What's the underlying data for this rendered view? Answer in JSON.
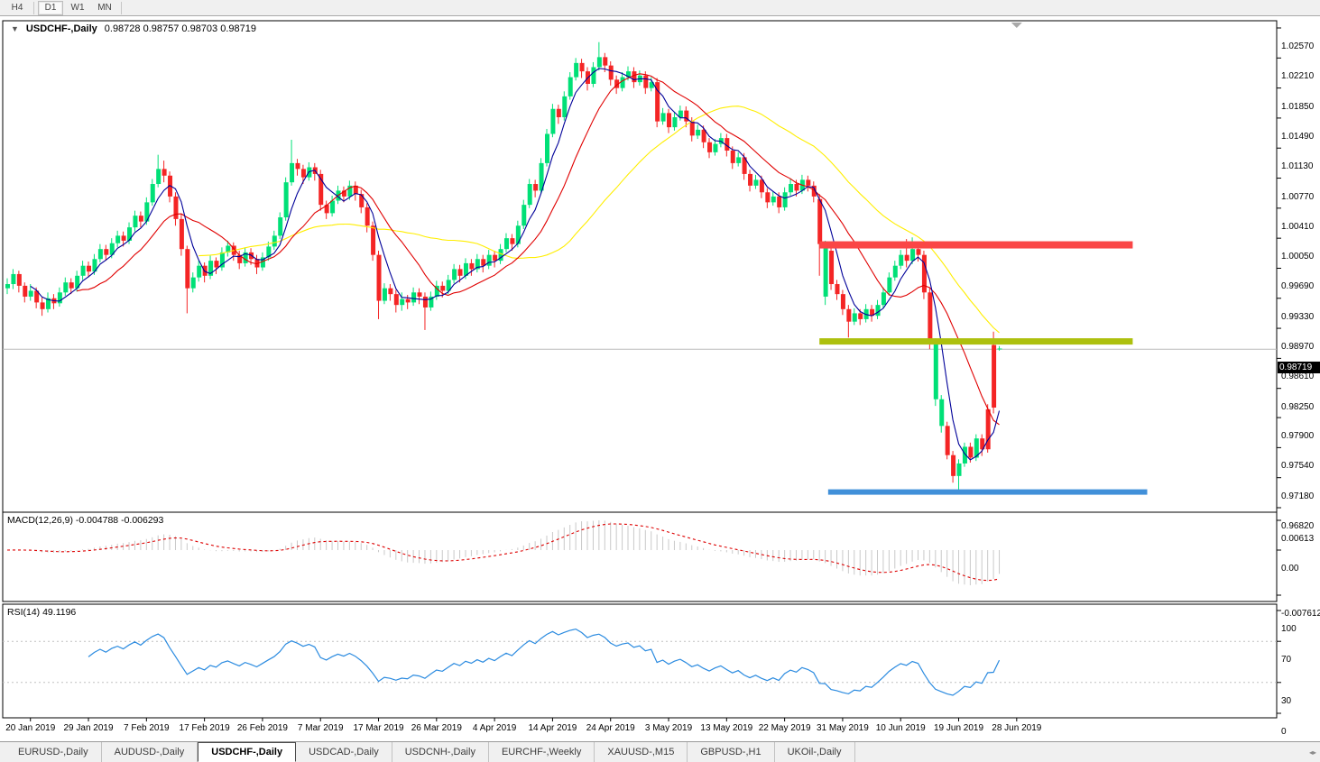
{
  "toolbar": {
    "timeframes": [
      {
        "label": "H4",
        "active": false
      },
      {
        "label": "D1",
        "active": true
      },
      {
        "label": "W1",
        "active": false
      },
      {
        "label": "MN",
        "active": false
      }
    ]
  },
  "chart": {
    "dropdown_icon": "▼",
    "title": "USDCHF-,Daily",
    "ohlc_text": "0.98728 0.98757 0.98703 0.98719",
    "open": "0.98728",
    "high": "0.98757",
    "low": "0.98703",
    "close": "0.98719"
  },
  "price_axis": {
    "current": "0.98719",
    "ticks": [
      "1.02570",
      "1.02210",
      "1.01850",
      "1.01490",
      "1.01130",
      "1.00770",
      "1.00410",
      "1.00050",
      "0.99690",
      "0.99330",
      "0.98970",
      "0.98610",
      "0.98250",
      "0.97900",
      "0.97540",
      "0.97180",
      "0.96820"
    ]
  },
  "chart_data": {
    "type": "candlestick",
    "symbol": "USDCHF",
    "timeframe": "Daily",
    "y_axis": {
      "top_price": 1.0257,
      "bottom_price": 0.9682,
      "grid": false
    },
    "x_ticks": {
      "labels": [
        "20 Jan 2019",
        "29 Jan 2019",
        "7 Feb 2019",
        "17 Feb 2019",
        "26 Feb 2019",
        "7 Mar 2019",
        "17 Mar 2019",
        "26 Mar 2019",
        "4 Apr 2019",
        "14 Apr 2019",
        "24 Apr 2019",
        "3 May 2019",
        "13 May 2019",
        "22 May 2019",
        "31 May 2019",
        "10 Jun 2019",
        "19 Jun 2019",
        "28 Jun 2019"
      ],
      "bars": [
        4,
        14,
        24,
        34,
        44,
        54,
        64,
        74,
        84,
        94,
        104,
        114,
        124,
        134,
        144,
        154,
        164,
        174
      ]
    },
    "current_price": 0.98719,
    "moving_averages": [
      {
        "name": "ma-slow",
        "period": 34,
        "color": "#ffee00"
      },
      {
        "name": "ma-mid",
        "period": 13,
        "color": "#e00000"
      },
      {
        "name": "ma-fast",
        "period": 5,
        "color": "#000099"
      }
    ],
    "levels": [
      {
        "name": "resistance-red",
        "price": 0.9997,
        "color": "#fa4646",
        "thickness": 8,
        "bar_from": 140,
        "bar_to": 194
      },
      {
        "name": "support-olive",
        "price": 0.98813,
        "color": "#adc00d",
        "thickness": 7,
        "bar_from": 140,
        "bar_to": 194
      },
      {
        "name": "support-blue",
        "price": 0.97008,
        "color": "#4190d9",
        "thickness": 6,
        "bar_from": 141.5,
        "bar_to": 196.5
      }
    ],
    "macd": {
      "label": "MACD(12,26,9) -0.004788 -0.006293",
      "params": [
        12,
        26,
        9
      ],
      "main_value": "-0.004788",
      "signal_value": "-0.006293",
      "axis": [
        "0.00613",
        "0.00",
        "-0.007612"
      ]
    },
    "rsi": {
      "label": "RSI(14) 49.1196",
      "period": 14,
      "value": "49.1196",
      "levels": [
        70,
        30
      ],
      "axis": [
        "100",
        "70",
        "30",
        "0"
      ]
    },
    "candles": [
      [
        0.9945,
        0.9957,
        0.9938,
        0.995
      ],
      [
        0.995,
        0.9968,
        0.9944,
        0.9962
      ],
      [
        0.9962,
        0.9966,
        0.994,
        0.9948
      ],
      [
        0.9948,
        0.9952,
        0.9928,
        0.9935
      ],
      [
        0.9935,
        0.995,
        0.993,
        0.9942
      ],
      [
        0.9942,
        0.9946,
        0.9921,
        0.9928
      ],
      [
        0.9928,
        0.9934,
        0.9912,
        0.992
      ],
      [
        0.992,
        0.994,
        0.9916,
        0.9933
      ],
      [
        0.9933,
        0.9938,
        0.992,
        0.9927
      ],
      [
        0.9927,
        0.9946,
        0.9923,
        0.994
      ],
      [
        0.994,
        0.9958,
        0.9936,
        0.9952
      ],
      [
        0.9952,
        0.9957,
        0.9938,
        0.9945
      ],
      [
        0.9945,
        0.9966,
        0.9941,
        0.996
      ],
      [
        0.996,
        0.9978,
        0.9955,
        0.9972
      ],
      [
        0.9972,
        0.9977,
        0.9958,
        0.9965
      ],
      [
        0.9965,
        0.9986,
        0.9961,
        0.998
      ],
      [
        0.998,
        0.9998,
        0.9976,
        0.9992
      ],
      [
        0.9992,
        0.9997,
        0.9978,
        0.9985
      ],
      [
        0.9985,
        1.0005,
        0.9981,
        0.9999
      ],
      [
        0.9999,
        1.0014,
        0.9994,
        1.0008
      ],
      [
        1.0008,
        1.0013,
        0.9995,
        1.0002
      ],
      [
        1.0002,
        1.0024,
        0.9998,
        1.0018
      ],
      [
        1.0018,
        1.0038,
        1.0013,
        1.0032
      ],
      [
        1.0032,
        1.0037,
        1.0018,
        1.0025
      ],
      [
        1.0025,
        1.0054,
        1.0021,
        1.0048
      ],
      [
        1.0048,
        1.0076,
        1.0044,
        1.007
      ],
      [
        1.007,
        1.0105,
        1.0066,
        1.0088
      ],
      [
        1.0088,
        1.0098,
        1.0072,
        1.008
      ],
      [
        1.008,
        1.0085,
        1.0048,
        1.0055
      ],
      [
        1.0055,
        1.006,
        1.002,
        1.0028
      ],
      [
        1.0028,
        1.0034,
        0.9984,
        0.9992
      ],
      [
        0.9992,
        0.9996,
        0.9915,
        0.9945
      ],
      [
        0.9945,
        0.9964,
        0.994,
        0.9958
      ],
      [
        0.9958,
        0.9978,
        0.9953,
        0.9972
      ],
      [
        0.9972,
        0.9976,
        0.9952,
        0.996
      ],
      [
        0.996,
        0.9984,
        0.9956,
        0.9978
      ],
      [
        0.9978,
        0.9982,
        0.9962,
        0.997
      ],
      [
        0.997,
        0.9994,
        0.9966,
        0.9988
      ],
      [
        0.9988,
        1.0002,
        0.9983,
        0.9996
      ],
      [
        0.9996,
        1.0,
        0.9978,
        0.9985
      ],
      [
        0.9985,
        0.999,
        0.9968,
        0.9975
      ],
      [
        0.9975,
        0.9994,
        0.9971,
        0.9988
      ],
      [
        0.9988,
        0.9993,
        0.9973,
        0.998
      ],
      [
        0.998,
        0.9985,
        0.9962,
        0.997
      ],
      [
        0.997,
        0.9988,
        0.9966,
        0.9982
      ],
      [
        0.9982,
        1.0001,
        0.9978,
        0.9995
      ],
      [
        0.9995,
        1.0014,
        0.9991,
        1.0008
      ],
      [
        1.0008,
        1.0036,
        1.0004,
        1.003
      ],
      [
        1.003,
        1.0078,
        1.0026,
        1.0072
      ],
      [
        1.0072,
        1.0123,
        1.0068,
        1.0095
      ],
      [
        1.0095,
        1.01,
        1.008,
        1.0088
      ],
      [
        1.0088,
        1.0093,
        1.007,
        1.0078
      ],
      [
        1.0078,
        1.0096,
        1.0074,
        1.009
      ],
      [
        1.009,
        1.0095,
        1.0074,
        1.0082
      ],
      [
        1.0082,
        1.0087,
        1.0038,
        1.0045
      ],
      [
        1.0045,
        1.005,
        1.0028,
        1.0035
      ],
      [
        1.0035,
        1.0056,
        1.0031,
        1.005
      ],
      [
        1.005,
        1.0068,
        1.0046,
        1.0062
      ],
      [
        1.0062,
        1.0067,
        1.0048,
        1.0055
      ],
      [
        1.0055,
        1.0074,
        1.0051,
        1.0068
      ],
      [
        1.0068,
        1.0073,
        1.005,
        1.0058
      ],
      [
        1.0058,
        1.0063,
        1.0035,
        1.0042
      ],
      [
        1.0042,
        1.0047,
        1.0012,
        1.002
      ],
      [
        1.002,
        1.0025,
        0.9978,
        0.9985
      ],
      [
        0.9985,
        0.999,
        0.9908,
        0.993
      ],
      [
        0.993,
        0.9951,
        0.9926,
        0.9945
      ],
      [
        0.9945,
        0.995,
        0.993,
        0.9938
      ],
      [
        0.9938,
        0.9943,
        0.9916,
        0.9925
      ],
      [
        0.9925,
        0.994,
        0.9918,
        0.9932
      ],
      [
        0.9932,
        0.9937,
        0.992,
        0.9928
      ],
      [
        0.9928,
        0.9946,
        0.9924,
        0.994
      ],
      [
        0.994,
        0.9945,
        0.9926,
        0.9935
      ],
      [
        0.9935,
        0.994,
        0.9895,
        0.9922
      ],
      [
        0.9922,
        0.9941,
        0.9918,
        0.9935
      ],
      [
        0.9935,
        0.9954,
        0.9931,
        0.9948
      ],
      [
        0.9948,
        0.9953,
        0.9934,
        0.9942
      ],
      [
        0.9942,
        0.9961,
        0.9938,
        0.9955
      ],
      [
        0.9955,
        0.9974,
        0.9951,
        0.9968
      ],
      [
        0.9968,
        0.9973,
        0.9952,
        0.996
      ],
      [
        0.996,
        0.9981,
        0.9956,
        0.9975
      ],
      [
        0.9975,
        0.998,
        0.996,
        0.9968
      ],
      [
        0.9968,
        0.9986,
        0.9964,
        0.998
      ],
      [
        0.998,
        0.9985,
        0.9964,
        0.9972
      ],
      [
        0.9972,
        0.9991,
        0.9968,
        0.9985
      ],
      [
        0.9985,
        0.999,
        0.997,
        0.9978
      ],
      [
        0.9978,
        0.9998,
        0.9974,
        0.9992
      ],
      [
        0.9992,
        1.0011,
        0.9988,
        1.0005
      ],
      [
        1.0005,
        1.001,
        0.999,
        0.9998
      ],
      [
        0.9998,
        1.0026,
        0.9994,
        1.002
      ],
      [
        1.002,
        1.0051,
        1.0016,
        1.0045
      ],
      [
        1.0045,
        1.0076,
        1.0041,
        1.007
      ],
      [
        1.007,
        1.0075,
        1.0054,
        1.0062
      ],
      [
        1.0062,
        1.0101,
        1.0058,
        1.0095
      ],
      [
        1.0095,
        1.0136,
        1.0091,
        1.013
      ],
      [
        1.013,
        1.0166,
        1.0126,
        1.016
      ],
      [
        1.016,
        1.0165,
        1.0142,
        1.015
      ],
      [
        1.015,
        1.0181,
        1.0146,
        1.0175
      ],
      [
        1.0175,
        1.0204,
        1.0171,
        1.0198
      ],
      [
        1.0198,
        1.0221,
        1.0194,
        1.0215
      ],
      [
        1.0215,
        1.022,
        1.0197,
        1.0205
      ],
      [
        1.0205,
        1.021,
        1.0182,
        1.019
      ],
      [
        1.019,
        1.0216,
        1.0186,
        1.021
      ],
      [
        1.021,
        1.024,
        1.0206,
        1.0222
      ],
      [
        1.0222,
        1.0227,
        1.0204,
        1.0212
      ],
      [
        1.0212,
        1.0217,
        1.0188,
        1.0195
      ],
      [
        1.0195,
        1.02,
        1.0178,
        1.0185
      ],
      [
        1.0185,
        1.0204,
        1.0181,
        1.0198
      ],
      [
        1.0198,
        1.0211,
        1.0194,
        1.0205
      ],
      [
        1.0205,
        1.021,
        1.0185,
        1.0192
      ],
      [
        1.0192,
        1.0206,
        1.0188,
        1.02
      ],
      [
        1.02,
        1.0205,
        1.0178,
        1.0185
      ],
      [
        1.0185,
        1.0198,
        1.0181,
        1.0192
      ],
      [
        1.0192,
        1.0197,
        1.0138,
        1.0145
      ],
      [
        1.0145,
        1.0161,
        1.0141,
        1.0155
      ],
      [
        1.0155,
        1.016,
        1.0131,
        1.0138
      ],
      [
        1.0138,
        1.0156,
        1.0134,
        1.015
      ],
      [
        1.015,
        1.0164,
        1.0146,
        1.0158
      ],
      [
        1.0158,
        1.0163,
        1.0138,
        1.0145
      ],
      [
        1.0145,
        1.015,
        1.0121,
        1.0128
      ],
      [
        1.0128,
        1.0141,
        1.0124,
        1.0135
      ],
      [
        1.0135,
        1.014,
        1.0113,
        1.012
      ],
      [
        1.012,
        1.0125,
        1.0101,
        1.0108
      ],
      [
        1.0108,
        1.0124,
        1.0104,
        1.0118
      ],
      [
        1.0118,
        1.0131,
        1.0114,
        1.0125
      ],
      [
        1.0125,
        1.013,
        1.0103,
        1.011
      ],
      [
        1.011,
        1.0115,
        1.0088,
        1.0095
      ],
      [
        1.0095,
        1.0108,
        1.0091,
        1.0102
      ],
      [
        1.0102,
        1.0107,
        1.0075,
        1.0082
      ],
      [
        1.0082,
        1.0087,
        1.0061,
        1.0068
      ],
      [
        1.0068,
        1.0081,
        1.0064,
        1.0075
      ],
      [
        1.0075,
        1.008,
        1.0053,
        1.006
      ],
      [
        1.006,
        1.0065,
        1.0041,
        1.0048
      ],
      [
        1.0048,
        1.0061,
        1.0044,
        1.0055
      ],
      [
        1.0055,
        1.006,
        1.0035,
        1.0042
      ],
      [
        1.0042,
        1.0066,
        1.0038,
        1.006
      ],
      [
        1.006,
        1.0076,
        1.0056,
        1.007
      ],
      [
        1.007,
        1.0075,
        1.0055,
        1.0062
      ],
      [
        1.0062,
        1.0081,
        1.0058,
        1.0075
      ],
      [
        1.0075,
        1.008,
        1.0061,
        1.0068
      ],
      [
        1.0068,
        1.0073,
        1.0048,
        1.0055
      ],
      [
        1.0052,
        1.0058,
        0.996,
        0.9998
      ],
      [
        0.9935,
        1.0002,
        0.9925,
        0.9996
      ],
      [
        0.999,
        0.9995,
        0.9943,
        0.995
      ],
      [
        0.995,
        0.9955,
        0.9931,
        0.9938
      ],
      [
        0.9938,
        0.9943,
        0.9913,
        0.992
      ],
      [
        0.992,
        0.9925,
        0.9886,
        0.9905
      ],
      [
        0.9905,
        0.9921,
        0.9901,
        0.9915
      ],
      [
        0.9915,
        0.992,
        0.9901,
        0.9908
      ],
      [
        0.9908,
        0.9926,
        0.9904,
        0.992
      ],
      [
        0.992,
        0.9925,
        0.9905,
        0.9912
      ],
      [
        0.9912,
        0.9931,
        0.9908,
        0.9925
      ],
      [
        0.9925,
        0.9946,
        0.9921,
        0.994
      ],
      [
        0.994,
        0.9964,
        0.9936,
        0.9958
      ],
      [
        0.9958,
        0.9978,
        0.9954,
        0.9972
      ],
      [
        0.9972,
        0.9991,
        0.9968,
        0.9985
      ],
      [
        0.9985,
        1.0004,
        0.997,
        0.9978
      ],
      [
        0.9978,
        1.0006,
        0.9974,
        0.9992
      ],
      [
        0.9992,
        0.9997,
        0.9977,
        0.9985
      ],
      [
        0.9985,
        0.999,
        0.9932,
        0.994
      ],
      [
        0.994,
        0.9945,
        0.9872,
        0.988
      ],
      [
        0.988,
        0.9885,
        0.9804,
        0.9812,
        "g"
      ],
      [
        0.9812,
        0.9817,
        0.9772,
        0.978,
        "g"
      ],
      [
        0.978,
        0.9785,
        0.974,
        0.9745
      ],
      [
        0.9745,
        0.975,
        0.9712,
        0.972
      ],
      [
        0.972,
        0.974,
        0.97,
        0.9735
      ],
      [
        0.9735,
        0.976,
        0.9731,
        0.9755
      ],
      [
        0.9755,
        0.976,
        0.9736,
        0.9742
      ],
      [
        0.9742,
        0.977,
        0.9738,
        0.9765
      ],
      [
        0.9765,
        0.977,
        0.9744,
        0.9752
      ],
      [
        0.9752,
        0.9806,
        0.9748,
        0.98,
        "r"
      ],
      [
        0.9877,
        0.9893,
        0.9795,
        0.9802
      ],
      [
        0.98728,
        0.98757,
        0.98703,
        0.98719,
        "g"
      ]
    ]
  },
  "colors": {
    "bull": "#00e077",
    "bear": "#f42525",
    "macd_hist": "#c9c9c9",
    "macd_signal": "#dd0000",
    "rsi_line": "#2b8be0",
    "rsi_level": "#c0c0c0",
    "price_line": "#b9b9b9",
    "panel_border": "#000000",
    "scroll_marker": "#a9a9a9"
  },
  "tabs": [
    {
      "label": "EURUSD-,Daily",
      "active": false
    },
    {
      "label": "AUDUSD-,Daily",
      "active": false
    },
    {
      "label": "USDCHF-,Daily",
      "active": true
    },
    {
      "label": "USDCAD-,Daily",
      "active": false
    },
    {
      "label": "USDCNH-,Daily",
      "active": false
    },
    {
      "label": "EURCHF-,Weekly",
      "active": false
    },
    {
      "label": "XAUUSD-,M15",
      "active": false
    },
    {
      "label": "GBPUSD-,H1",
      "active": false
    },
    {
      "label": "UKOil-,Daily",
      "active": false
    }
  ]
}
